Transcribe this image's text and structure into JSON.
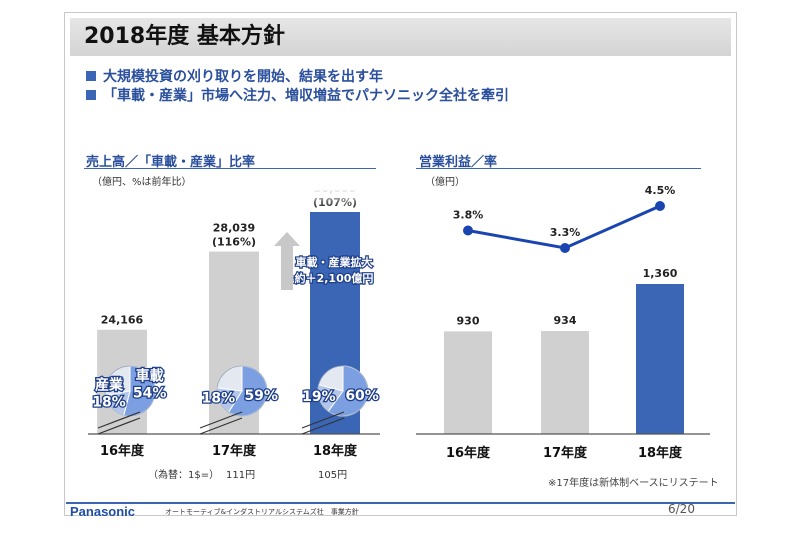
{
  "slide": {
    "title": "2018年度 基本方針",
    "bullets": [
      "大規模投資の刈り取りを開始、結果を出す年",
      "「車載・産業」市場へ注力、増収増益でパナソニック全社を牽引"
    ],
    "footer": {
      "brand": "Panasonic",
      "division": "オートモーティブ&インダストリアルシステムズ社　事業方針",
      "page": "6/20"
    },
    "exchange_rate": {
      "label": "（為替：1$=）",
      "values": [
        "111円",
        "105円"
      ]
    },
    "restate_note": "※17年度は新体制ベースにリステート"
  },
  "chart_data": [
    {
      "type": "bar",
      "title": "売上高／「車載・産業」比率",
      "unit_note": "（億円、%は前年比）",
      "categories": [
        "16年度",
        "17年度",
        "18年度"
      ],
      "values": [
        24166,
        28039,
        30000
      ],
      "value_labels": [
        "24,166",
        "28,039",
        "30,000"
      ],
      "growth_labels": [
        "",
        "(116%)",
        "(107%)"
      ],
      "highlight_color": "#3a66b5",
      "base_color": "#d0d0d0",
      "pies": [
        {
          "automotive_label": "車載",
          "automotive": 54,
          "automotive_text": "54%",
          "industrial_label": "産業",
          "industrial": 18,
          "industrial_text": "18%"
        },
        {
          "automotive": 59,
          "automotive_text": "59%",
          "industrial": 18,
          "industrial_text": "18%"
        },
        {
          "automotive": 60,
          "automotive_text": "60%",
          "industrial": 19,
          "industrial_text": "19%"
        }
      ],
      "annotation": {
        "lines": [
          "車載・産業拡大",
          "約＋2,100億円"
        ]
      }
    },
    {
      "type": "bar+line",
      "title": "営業利益／率",
      "unit_note": "（億円）",
      "categories": [
        "16年度",
        "17年度",
        "18年度"
      ],
      "values": [
        930,
        934,
        1360
      ],
      "value_labels": [
        "930",
        "934",
        "1,360"
      ],
      "rates": [
        3.8,
        3.3,
        4.5
      ],
      "rate_labels": [
        "3.8%",
        "3.3%",
        "4.5%"
      ],
      "line_color": "#1a45b0",
      "highlight_color": "#3a66b5",
      "base_color": "#d0d0d0"
    }
  ]
}
